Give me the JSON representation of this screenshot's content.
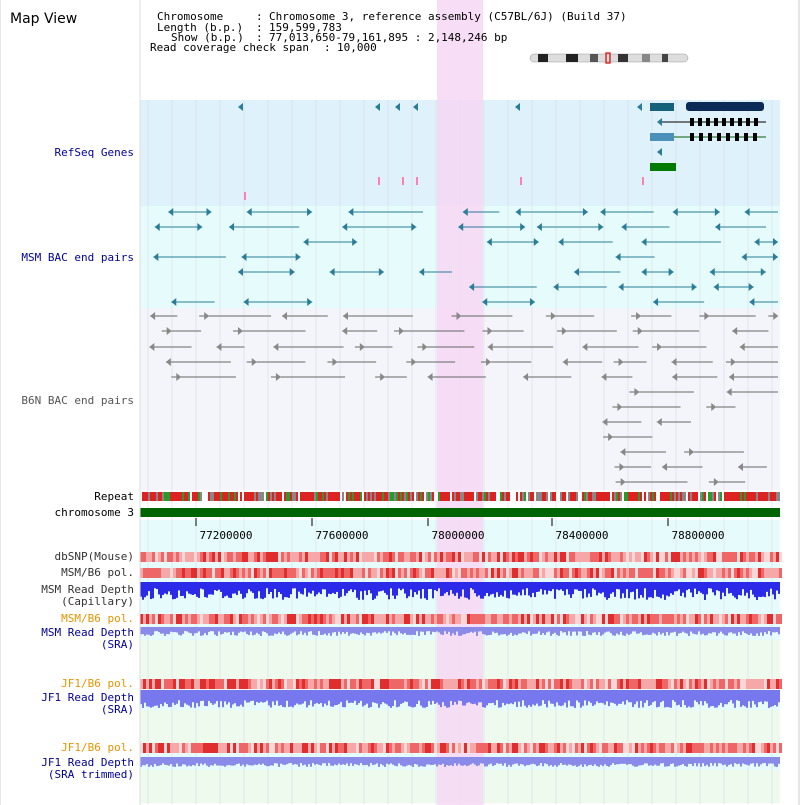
{
  "title": "Map View",
  "info": {
    "chromosome_label": "Chromosome",
    "chromosome_value": "Chromosome 3, reference assembly (C57BL/6J) (Build 37)",
    "length_label": "Length (b.p.)",
    "length_value": "159,599,783",
    "show_label": "Show (b.p.)",
    "show_value": "77,013,650-79,161,895 : 2,148,246 bp",
    "coverage_label": "Read coverage check span",
    "coverage_value": "10,000"
  },
  "tracks": {
    "refseq": "RefSeq Genes",
    "msm_bac": "MSM BAC end pairs",
    "b6n_bac": "B6N BAC end pairs",
    "repeat": "Repeat",
    "chromosome": "chromosome 3",
    "dbsnp": "dbSNP(Mouse)",
    "msm_b6_pol_1": "MSM/B6 pol.",
    "msm_depth_cap_1": "MSM Read Depth",
    "msm_depth_cap_2": "(Capillary)",
    "msm_b6_pol_2": "MSM/B6 pol.",
    "msm_depth_sra_1": "MSM Read Depth",
    "msm_depth_sra_2": "(SRA)",
    "jf1_b6_pol_1": "JF1/B6 pol.",
    "jf1_depth_sra_1": "JF1 Read Depth",
    "jf1_depth_sra_2": "(SRA)",
    "jf1_b6_pol_2": "JF1/B6 pol.",
    "jf1_depth_trim_1": "JF1 Read Depth",
    "jf1_depth_trim_2": "(SRA trimmed)"
  },
  "axis": {
    "ticks": [
      "77200000",
      "77600000",
      "78000000",
      "78400000",
      "78800000"
    ]
  },
  "colors": {
    "refseq_bg": "#dff1fb",
    "msm_bg": "#e6fbfb",
    "b6n_bg": "#f3f5fa",
    "highlight": "#f6d7f3",
    "chromosome_bar": "#006400",
    "label_blue": "#000099",
    "label_orange": "#e69500",
    "msm_pair": "#2a7c97",
    "b6n_pair": "#777777",
    "depth_blue": "#3333ee",
    "depth_light": "#8888ee",
    "snp_red": "#e74b4b"
  }
}
